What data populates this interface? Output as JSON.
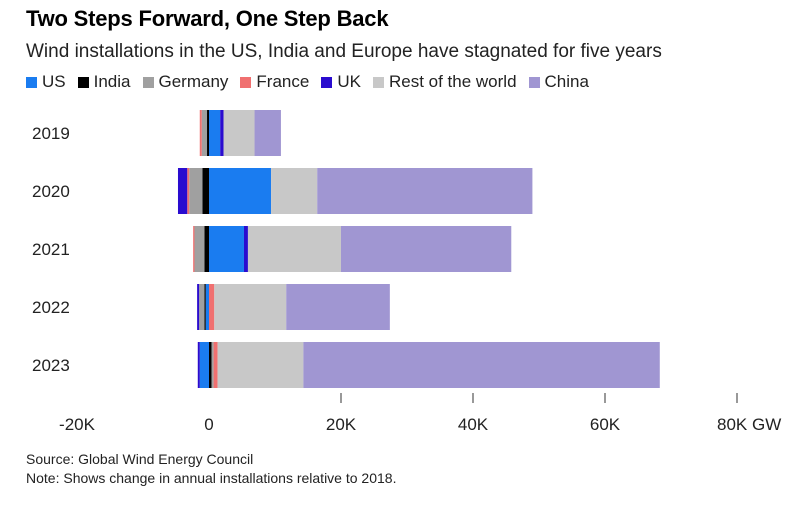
{
  "title": "Two Steps Forward, One Step Back",
  "subtitle": "Wind installations in the US, India and Europe have stagnated for five years",
  "legend": [
    {
      "name": "US",
      "color": "#1a7cf0"
    },
    {
      "name": "India",
      "color": "#000000"
    },
    {
      "name": "Germany",
      "color": "#a0a0a0"
    },
    {
      "name": "France",
      "color": "#f07070"
    },
    {
      "name": "UK",
      "color": "#2a0ccf"
    },
    {
      "name": "Rest of the world",
      "color": "#c8c8c8"
    },
    {
      "name": "China",
      "color": "#a096d2"
    }
  ],
  "source": "Source: Global Wind Energy Council",
  "note": "Note: Shows change in annual installations relative to 2018.",
  "chart_data": {
    "type": "bar",
    "orientation": "horizontal",
    "stacked": true,
    "categories": [
      "2019",
      "2020",
      "2021",
      "2022",
      "2023"
    ],
    "xlim": [
      -20000,
      80000
    ],
    "x_ticks": [
      -20000,
      0,
      20000,
      40000,
      60000,
      80000
    ],
    "x_tick_labels": [
      "-20K",
      "0",
      "20K",
      "40K",
      "60K",
      "80K GW"
    ],
    "series": [
      {
        "name": "US",
        "color": "#1a7cf0",
        "values": [
          1700,
          9400,
          5300,
          -500,
          -1400
        ]
      },
      {
        "name": "India",
        "color": "#000000",
        "values": [
          -300,
          -1000,
          -700,
          -200,
          400
        ]
      },
      {
        "name": "Germany",
        "color": "#a0a0a0",
        "values": [
          -800,
          -2000,
          -1500,
          -800,
          300
        ]
      },
      {
        "name": "France",
        "color": "#f07070",
        "values": [
          -300,
          -300,
          -200,
          800,
          600
        ]
      },
      {
        "name": "UK",
        "color": "#2a0ccf",
        "values": [
          500,
          -1400,
          600,
          -300,
          -300
        ]
      },
      {
        "name": "Rest of the world",
        "color": "#c8c8c8",
        "values": [
          4700,
          7000,
          14100,
          10900,
          13000
        ]
      },
      {
        "name": "China",
        "color": "#a096d2",
        "values": [
          4000,
          32600,
          25800,
          15700,
          54000
        ]
      }
    ]
  }
}
